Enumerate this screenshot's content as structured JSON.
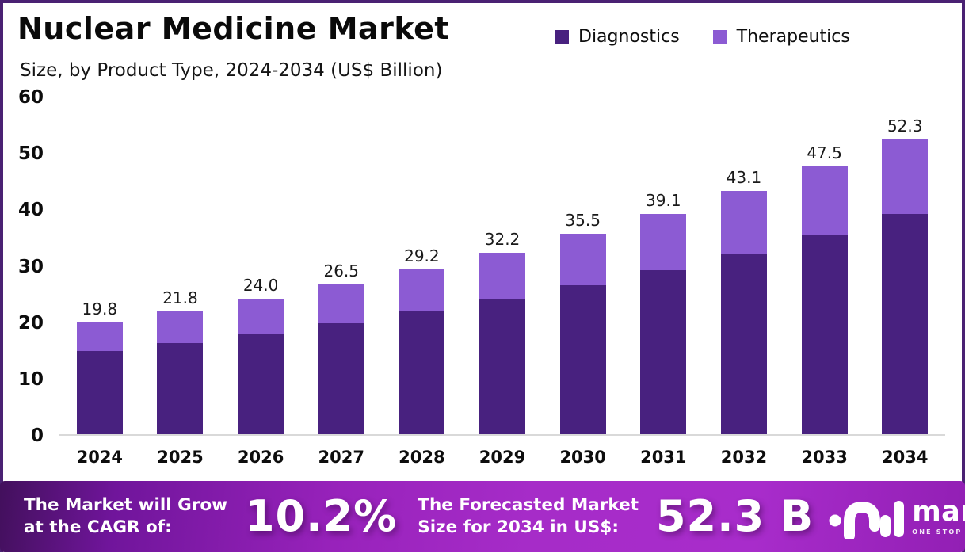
{
  "header": {
    "title": "Nuclear Medicine Market",
    "subtitle": "Size, by Product Type, 2024-2034 (US$ Billion)"
  },
  "legend": {
    "position": "top-right",
    "items": [
      {
        "label": "Diagnostics",
        "color": "#48217f"
      },
      {
        "label": "Therapeutics",
        "color": "#8c5bd3"
      }
    ]
  },
  "chart_data": {
    "type": "bar",
    "stacked": true,
    "title": "Nuclear Medicine Market Size, by Product Type, 2024-2034 (US$ Billion)",
    "units": "US$ Billion",
    "categories": [
      "2024",
      "2025",
      "2026",
      "2027",
      "2028",
      "2029",
      "2030",
      "2031",
      "2032",
      "2033",
      "2034"
    ],
    "series": [
      {
        "name": "Diagnostics",
        "color": "#48217f",
        "values": [
          14.7,
          16.2,
          17.9,
          19.7,
          21.8,
          24.0,
          26.4,
          29.1,
          32.1,
          35.4,
          39.0
        ]
      },
      {
        "name": "Therapeutics",
        "color": "#8c5bd3",
        "values": [
          5.1,
          5.6,
          6.1,
          6.8,
          7.4,
          8.2,
          9.1,
          10.0,
          11.0,
          12.1,
          13.3
        ]
      }
    ],
    "totals": [
      19.8,
      21.8,
      24.0,
      26.5,
      29.2,
      32.2,
      35.5,
      39.1,
      43.1,
      47.5,
      52.3
    ],
    "total_labels": [
      "19.8",
      "21.8",
      "24.0",
      "26.5",
      "29.2",
      "32.2",
      "35.5",
      "39.1",
      "43.1",
      "47.5",
      "52.3"
    ],
    "xlabel": "",
    "ylabel": "",
    "ylim": [
      0,
      60
    ],
    "yticks": [
      0,
      10,
      20,
      30,
      40,
      50,
      60
    ],
    "grid": false,
    "legend_position": "top-right"
  },
  "footer": {
    "cagr_label_line1": "The Market will Grow",
    "cagr_label_line2": "at the CAGR of:",
    "cagr_value": "10.2%",
    "forecast_label_line1": "The Forecasted Market",
    "forecast_label_line2": "Size for 2034 in US$:",
    "forecast_value": "52.3 B",
    "brand_name": "market.us",
    "brand_tagline": "ONE STOP SHOP FOR THE REPORTS"
  },
  "colors": {
    "diagnostics": "#48217f",
    "therapeutics": "#8c5bd3",
    "frame_border": "#4a2173",
    "axis_line": "#d9d9d9",
    "text": "#111111",
    "footer_gradient_start": "#42105c",
    "footer_gradient_mid": "#a62cc8",
    "footer_gradient_end": "#921fb4"
  }
}
